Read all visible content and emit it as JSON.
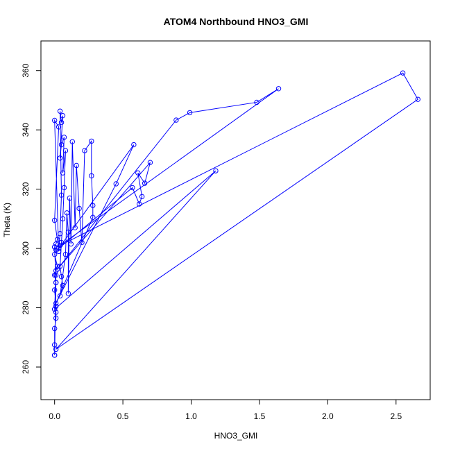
{
  "chart_data": {
    "type": "line",
    "title": "ATOM4 Northbound HNO3_GMI",
    "xlabel": "HNO3_GMI",
    "ylabel": "Theta (K)",
    "xlim": [
      -0.1,
      2.75
    ],
    "ylim": [
      249,
      370
    ],
    "x_ticks": [
      0.0,
      0.5,
      1.0,
      1.5,
      2.0,
      2.5
    ],
    "x_tick_labels": [
      "0.0",
      "0.5",
      "1.0",
      "1.5",
      "2.0",
      "2.5"
    ],
    "y_ticks": [
      260,
      280,
      300,
      320,
      340,
      360
    ],
    "y_tick_labels": [
      "260",
      "280",
      "300",
      "320",
      "340",
      "360"
    ],
    "grid": false,
    "legend": "none",
    "markers": "open-circles",
    "series_color": "#0000ff",
    "series": [
      {
        "name": "",
        "points": [
          [
            0.0,
            264.0
          ],
          [
            0.0,
            267.5
          ],
          [
            0.0,
            273.0
          ],
          [
            0.01,
            276.5
          ],
          [
            0.01,
            278.5
          ],
          [
            0.0,
            279.5
          ],
          [
            0.01,
            280.5
          ],
          [
            0.0,
            286.0
          ],
          [
            0.01,
            288.5
          ],
          [
            0.0,
            291.0
          ],
          [
            0.01,
            292.5
          ],
          [
            0.02,
            294.0
          ],
          [
            0.0,
            298.0
          ],
          [
            0.01,
            299.5
          ],
          [
            0.0,
            300.5
          ],
          [
            0.01,
            301.5
          ],
          [
            0.02,
            303.0
          ],
          [
            0.0,
            309.5
          ],
          [
            0.03,
            341.0
          ],
          [
            0.0,
            343.2
          ],
          [
            0.03,
            299.0
          ],
          [
            0.04,
            305.0
          ],
          [
            0.05,
            318.0
          ],
          [
            0.04,
            346.3
          ],
          [
            0.05,
            342.5
          ],
          [
            0.06,
            344.8
          ],
          [
            0.04,
            330.5
          ],
          [
            0.05,
            335.0
          ],
          [
            0.07,
            337.5
          ],
          [
            0.06,
            325.5
          ],
          [
            0.08,
            333.0
          ],
          [
            0.07,
            320.5
          ],
          [
            0.06,
            310.0
          ],
          [
            0.05,
            302.0
          ],
          [
            0.04,
            294.0
          ],
          [
            0.05,
            290.5
          ],
          [
            0.06,
            287.5
          ],
          [
            0.04,
            284.0
          ],
          [
            0.08,
            298.0
          ],
          [
            0.09,
            312.0
          ],
          [
            0.1,
            305.5
          ],
          [
            0.1,
            284.8
          ],
          [
            0.11,
            317.0
          ],
          [
            0.12,
            301.5
          ],
          [
            0.13,
            336.0
          ],
          [
            0.15,
            307.0
          ],
          [
            0.16,
            328.0
          ],
          [
            0.18,
            313.5
          ],
          [
            0.2,
            302.0
          ],
          [
            0.22,
            333.0
          ],
          [
            0.27,
            336.2
          ],
          [
            0.27,
            324.5
          ],
          [
            0.28,
            314.5
          ],
          [
            0.28,
            310.5
          ],
          [
            0.01,
            281.5
          ],
          [
            0.45,
            321.8
          ],
          [
            0.58,
            335.0
          ],
          [
            0.03,
            300.0
          ],
          [
            0.57,
            320.5
          ],
          [
            0.62,
            315.0
          ],
          [
            0.64,
            317.5
          ],
          [
            0.61,
            325.5
          ],
          [
            0.66,
            322.0
          ],
          [
            0.7,
            329.0
          ],
          [
            0.02,
            293.0
          ],
          [
            0.89,
            343.3
          ],
          [
            0.99,
            345.8
          ],
          [
            1.48,
            349.3
          ],
          [
            1.64,
            353.9
          ],
          [
            0.04,
            301.0
          ],
          [
            2.55,
            359.2
          ],
          [
            2.66,
            350.3
          ],
          [
            0.01,
            266.0
          ],
          [
            1.18,
            326.2
          ],
          [
            0.0,
            279.5
          ],
          [
            0.01,
            291.0
          ],
          [
            0.0,
            300.5
          ],
          [
            0.01,
            288.5
          ],
          [
            0.0,
            264.0
          ]
        ]
      }
    ]
  }
}
